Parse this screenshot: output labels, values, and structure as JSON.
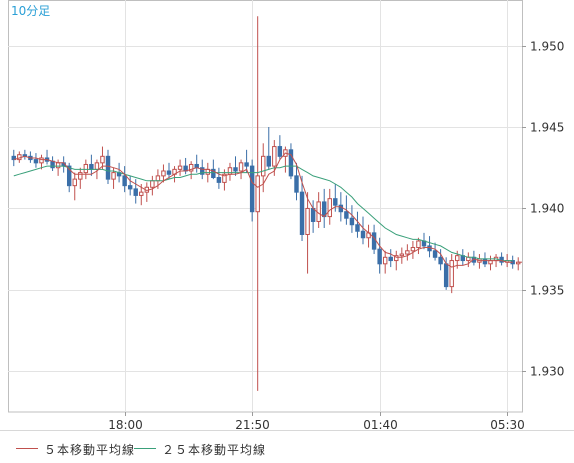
{
  "chart_data": {
    "type": "candlestick",
    "interval_label": "10分足",
    "y_ticks": [
      "1.950",
      "1.945",
      "1.940",
      "1.935",
      "1.930"
    ],
    "y_tick_values": [
      1.95,
      1.945,
      1.94,
      1.935,
      1.93
    ],
    "ylim": [
      1.9275,
      1.9528
    ],
    "x_ticks": [
      "18:00",
      "21:50",
      "01:40",
      "05:30"
    ],
    "x_tick_index": [
      20,
      43,
      66,
      89
    ],
    "grid": true,
    "legend_placement": "bottom",
    "series": [
      {
        "name": "５本移動平均線",
        "color": "#c0504d"
      },
      {
        "name": "２５本移動平均線",
        "color": "#3aa07a"
      }
    ],
    "up_color": "#c0504d",
    "down_color": "#3b6fa8",
    "candles": [
      [
        1.9432,
        1.9436,
        1.9426,
        1.943
      ],
      [
        1.943,
        1.9435,
        1.9428,
        1.9433
      ],
      [
        1.9433,
        1.9436,
        1.943,
        1.9432
      ],
      [
        1.9432,
        1.9435,
        1.9428,
        1.943
      ],
      [
        1.943,
        1.9434,
        1.9425,
        1.9428
      ],
      [
        1.9428,
        1.9433,
        1.9424,
        1.9431
      ],
      [
        1.9431,
        1.9436,
        1.9427,
        1.9429
      ],
      [
        1.9429,
        1.9432,
        1.9423,
        1.9425
      ],
      [
        1.9425,
        1.943,
        1.942,
        1.9428
      ],
      [
        1.9428,
        1.9432,
        1.9422,
        1.9426
      ],
      [
        1.9426,
        1.9428,
        1.941,
        1.9414
      ],
      [
        1.9414,
        1.9422,
        1.9405,
        1.9418
      ],
      [
        1.9418,
        1.9425,
        1.9412,
        1.9422
      ],
      [
        1.9422,
        1.943,
        1.9418,
        1.9427
      ],
      [
        1.9427,
        1.9433,
        1.942,
        1.9424
      ],
      [
        1.9424,
        1.943,
        1.9418,
        1.9428
      ],
      [
        1.9428,
        1.9438,
        1.9424,
        1.9432
      ],
      [
        1.9432,
        1.9436,
        1.9415,
        1.9418
      ],
      [
        1.9418,
        1.9425,
        1.9412,
        1.9422
      ],
      [
        1.9422,
        1.9428,
        1.9416,
        1.942
      ],
      [
        1.942,
        1.9426,
        1.941,
        1.9414
      ],
      [
        1.9414,
        1.942,
        1.9408,
        1.9412
      ],
      [
        1.9412,
        1.9418,
        1.9403,
        1.9408
      ],
      [
        1.9408,
        1.9415,
        1.9402,
        1.941
      ],
      [
        1.941,
        1.9416,
        1.9404,
        1.9413
      ],
      [
        1.9413,
        1.942,
        1.9408,
        1.9417
      ],
      [
        1.9417,
        1.9424,
        1.9412,
        1.942
      ],
      [
        1.942,
        1.9427,
        1.9416,
        1.9423
      ],
      [
        1.9423,
        1.9428,
        1.9418,
        1.9421
      ],
      [
        1.9421,
        1.9426,
        1.9416,
        1.9424
      ],
      [
        1.9424,
        1.943,
        1.942,
        1.9426
      ],
      [
        1.9426,
        1.9431,
        1.9421,
        1.9423
      ],
      [
        1.9423,
        1.9429,
        1.9418,
        1.9427
      ],
      [
        1.9427,
        1.9433,
        1.9422,
        1.9425
      ],
      [
        1.9425,
        1.943,
        1.9418,
        1.9421
      ],
      [
        1.9421,
        1.9428,
        1.9416,
        1.9424
      ],
      [
        1.9424,
        1.943,
        1.9418,
        1.9419
      ],
      [
        1.9419,
        1.9425,
        1.9412,
        1.9416
      ],
      [
        1.9416,
        1.9424,
        1.9411,
        1.9421
      ],
      [
        1.9421,
        1.9428,
        1.9417,
        1.9425
      ],
      [
        1.9425,
        1.9432,
        1.942,
        1.9423
      ],
      [
        1.9423,
        1.943,
        1.9418,
        1.9428
      ],
      [
        1.9428,
        1.9436,
        1.9422,
        1.9426
      ],
      [
        1.9426,
        1.943,
        1.9392,
        1.9398
      ],
      [
        1.9398,
        1.9518,
        1.9288,
        1.942
      ],
      [
        1.942,
        1.944,
        1.941,
        1.9432
      ],
      [
        1.9432,
        1.945,
        1.9424,
        1.9426
      ],
      [
        1.9426,
        1.9442,
        1.942,
        1.9438
      ],
      [
        1.9438,
        1.9445,
        1.943,
        1.9432
      ],
      [
        1.9432,
        1.9438,
        1.9422,
        1.9436
      ],
      [
        1.9436,
        1.944,
        1.9418,
        1.942
      ],
      [
        1.942,
        1.9428,
        1.9405,
        1.941
      ],
      [
        1.941,
        1.942,
        1.938,
        1.9384
      ],
      [
        1.9384,
        1.941,
        1.936,
        1.94
      ],
      [
        1.94,
        1.9405,
        1.9385,
        1.9392
      ],
      [
        1.9392,
        1.941,
        1.9388,
        1.9404
      ],
      [
        1.9404,
        1.9412,
        1.9388,
        1.9395
      ],
      [
        1.9395,
        1.9412,
        1.939,
        1.9406
      ],
      [
        1.9406,
        1.9415,
        1.9398,
        1.9402
      ],
      [
        1.9402,
        1.941,
        1.9392,
        1.9398
      ],
      [
        1.9398,
        1.9408,
        1.939,
        1.9394
      ],
      [
        1.9394,
        1.9402,
        1.9385,
        1.939
      ],
      [
        1.939,
        1.9398,
        1.9382,
        1.9386
      ],
      [
        1.9386,
        1.9395,
        1.9378,
        1.9382
      ],
      [
        1.9382,
        1.939,
        1.9376,
        1.9385
      ],
      [
        1.9385,
        1.939,
        1.9372,
        1.9375
      ],
      [
        1.9375,
        1.9382,
        1.936,
        1.9366
      ],
      [
        1.9366,
        1.9374,
        1.936,
        1.937
      ],
      [
        1.937,
        1.9375,
        1.9364,
        1.9368
      ],
      [
        1.9368,
        1.9374,
        1.9362,
        1.9371
      ],
      [
        1.9371,
        1.9376,
        1.9366,
        1.9372
      ],
      [
        1.9372,
        1.9378,
        1.9368,
        1.9374
      ],
      [
        1.9374,
        1.938,
        1.9369,
        1.9376
      ],
      [
        1.9376,
        1.9382,
        1.9372,
        1.938
      ],
      [
        1.938,
        1.9385,
        1.9375,
        1.9377
      ],
      [
        1.9377,
        1.9383,
        1.937,
        1.9374
      ],
      [
        1.9374,
        1.9379,
        1.9368,
        1.937
      ],
      [
        1.937,
        1.9375,
        1.9362,
        1.9366
      ],
      [
        1.9366,
        1.937,
        1.935,
        1.9352
      ],
      [
        1.9352,
        1.9372,
        1.9348,
        1.9368
      ],
      [
        1.9368,
        1.9374,
        1.9363,
        1.9371
      ],
      [
        1.9371,
        1.9375,
        1.9365,
        1.9368
      ],
      [
        1.9368,
        1.9373,
        1.9364,
        1.937
      ],
      [
        1.937,
        1.9374,
        1.9365,
        1.9367
      ],
      [
        1.9367,
        1.9372,
        1.9363,
        1.9369
      ],
      [
        1.9369,
        1.9373,
        1.9364,
        1.9366
      ],
      [
        1.9366,
        1.9371,
        1.9362,
        1.9368
      ],
      [
        1.9368,
        1.9372,
        1.9364,
        1.937
      ],
      [
        1.937,
        1.9373,
        1.9365,
        1.9367
      ],
      [
        1.9367,
        1.9372,
        1.9364,
        1.9368
      ],
      [
        1.9368,
        1.9371,
        1.9363,
        1.9366
      ],
      [
        1.9366,
        1.937,
        1.9362,
        1.9367
      ]
    ],
    "ma5": [
      1.943,
      1.9431,
      1.9432,
      1.9431,
      1.9431,
      1.943,
      1.943,
      1.9429,
      1.9428,
      1.9428,
      1.9424,
      1.9421,
      1.9421,
      1.9421,
      1.9421,
      1.9423,
      1.9426,
      1.9426,
      1.9425,
      1.9424,
      1.9421,
      1.9417,
      1.9415,
      1.9413,
      1.9411,
      1.9412,
      1.9414,
      1.9417,
      1.9419,
      1.9421,
      1.9423,
      1.9423,
      1.9424,
      1.9425,
      1.9424,
      1.9424,
      1.9423,
      1.9421,
      1.942,
      1.9421,
      1.9421,
      1.9422,
      1.9424,
      1.9416,
      1.9413,
      1.9415,
      1.9421,
      1.9423,
      1.943,
      1.9434,
      1.9433,
      1.9427,
      1.9416,
      1.9406,
      1.94,
      1.9397,
      1.9395,
      1.9399,
      1.9401,
      1.9401,
      1.9399,
      1.9396,
      1.9392,
      1.9388,
      1.9385,
      1.9382,
      1.9377,
      1.9373,
      1.9372,
      1.937,
      1.937,
      1.9371,
      1.9373,
      1.9375,
      1.9376,
      1.9376,
      1.9375,
      1.9372,
      1.9366,
      1.9364,
      1.9365,
      1.9365,
      1.9366,
      1.9369,
      1.9368,
      1.9368,
      1.9368,
      1.9368,
      1.9368,
      1.9367,
      1.9367
    ],
    "ma25": [
      1.942,
      1.9421,
      1.9422,
      1.9423,
      1.9424,
      1.9425,
      1.9426,
      1.9426,
      1.9426,
      1.9426,
      1.9425,
      1.9424,
      1.9424,
      1.9424,
      1.9424,
      1.9424,
      1.9424,
      1.9423,
      1.9423,
      1.9422,
      1.9421,
      1.942,
      1.9419,
      1.9418,
      1.9417,
      1.9417,
      1.9417,
      1.9417,
      1.9418,
      1.9419,
      1.9419,
      1.942,
      1.9421,
      1.9421,
      1.9422,
      1.9422,
      1.9422,
      1.9422,
      1.9422,
      1.9422,
      1.9422,
      1.9422,
      1.9422,
      1.9422,
      1.9422,
      1.9423,
      1.9424,
      1.9425,
      1.9425,
      1.9426,
      1.9426,
      1.9426,
      1.9424,
      1.9422,
      1.942,
      1.9419,
      1.9418,
      1.9417,
      1.9415,
      1.9413,
      1.941,
      1.9407,
      1.9403,
      1.94,
      1.9397,
      1.9394,
      1.9391,
      1.9388,
      1.9386,
      1.9384,
      1.9383,
      1.9382,
      1.9381,
      1.9381,
      1.938,
      1.9379,
      1.9378,
      1.9377,
      1.9375,
      1.9373,
      1.9372,
      1.9371,
      1.937,
      1.937,
      1.9369,
      1.9369,
      1.9369,
      1.9369,
      1.9368,
      1.9368,
      1.9368
    ]
  }
}
